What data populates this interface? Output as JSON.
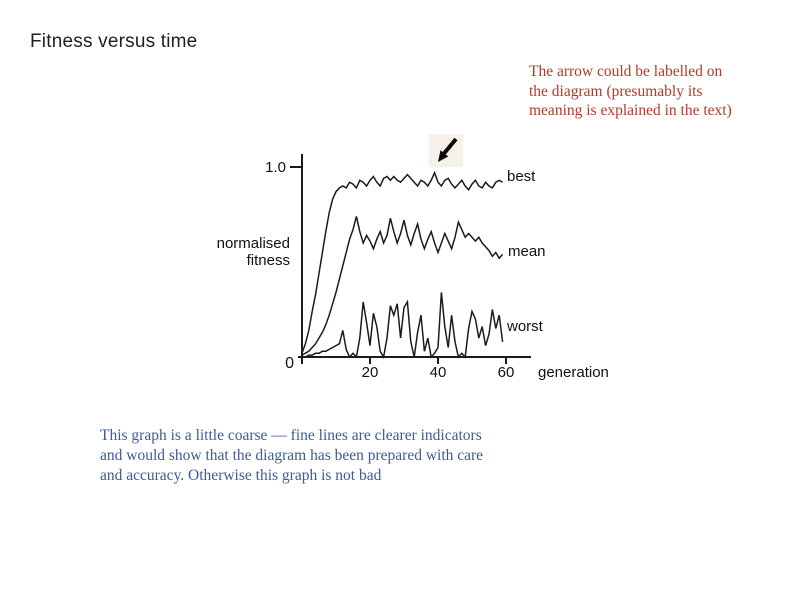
{
  "slide": {
    "title": "Fitness versus time",
    "background_color": "#ffffff"
  },
  "annotations": {
    "red_note": {
      "color": "#b23a28",
      "lines": [
        "The arrow could be labelled on",
        "the diagram (presumably its",
        "meaning is explained in the text)"
      ]
    },
    "blue_note": {
      "color": "#3e5b94",
      "lines": [
        "This graph is a little coarse — fine lines are clearer indicators",
        "and would show that the diagram has been prepared with care",
        "and accuracy. Otherwise this graph is not bad"
      ]
    }
  },
  "chart_data": {
    "type": "line",
    "title": "Fitness versus time",
    "xlabel": "generation",
    "ylabel": "normalised fitness",
    "ylabel_lines": [
      "normalised",
      "fitness"
    ],
    "origin_label": "0",
    "y_tick_label": "1.0",
    "x_tick_labels": [
      "20",
      "40",
      "60"
    ],
    "x_tick_values": [
      20,
      40,
      60
    ],
    "xlim": [
      0,
      67
    ],
    "ylim": [
      0,
      1.07
    ],
    "grid": false,
    "line_color": "#1b1b1b",
    "x_step": 1,
    "series": [
      {
        "name": "best",
        "values": [
          0.02,
          0.07,
          0.14,
          0.24,
          0.33,
          0.44,
          0.55,
          0.66,
          0.76,
          0.83,
          0.87,
          0.89,
          0.9,
          0.89,
          0.92,
          0.91,
          0.89,
          0.93,
          0.92,
          0.9,
          0.93,
          0.95,
          0.92,
          0.9,
          0.94,
          0.95,
          0.93,
          0.95,
          0.93,
          0.92,
          0.94,
          0.96,
          0.94,
          0.92,
          0.9,
          0.93,
          0.92,
          0.9,
          0.93,
          0.97,
          0.92,
          0.9,
          0.93,
          0.94,
          0.91,
          0.89,
          0.91,
          0.93,
          0.9,
          0.88,
          0.91,
          0.93,
          0.9,
          0.89,
          0.92,
          0.9,
          0.89,
          0.92,
          0.93,
          0.92
        ]
      },
      {
        "name": "mean",
        "values": [
          0.01,
          0.02,
          0.03,
          0.05,
          0.07,
          0.1,
          0.13,
          0.17,
          0.22,
          0.28,
          0.34,
          0.41,
          0.48,
          0.55,
          0.62,
          0.67,
          0.74,
          0.66,
          0.6,
          0.64,
          0.61,
          0.57,
          0.62,
          0.66,
          0.6,
          0.64,
          0.73,
          0.66,
          0.6,
          0.65,
          0.72,
          0.64,
          0.59,
          0.65,
          0.7,
          0.62,
          0.57,
          0.62,
          0.66,
          0.6,
          0.55,
          0.6,
          0.65,
          0.61,
          0.57,
          0.63,
          0.71,
          0.67,
          0.63,
          0.65,
          0.63,
          0.61,
          0.63,
          0.6,
          0.58,
          0.56,
          0.53,
          0.55,
          0.52,
          0.54
        ]
      },
      {
        "name": "worst",
        "values": [
          0.0,
          0.0,
          0.01,
          0.01,
          0.02,
          0.02,
          0.03,
          0.03,
          0.04,
          0.05,
          0.06,
          0.07,
          0.14,
          0.04,
          0.0,
          0.02,
          0.0,
          0.1,
          0.29,
          0.18,
          0.06,
          0.23,
          0.16,
          0.03,
          0.0,
          0.1,
          0.27,
          0.22,
          0.28,
          0.1,
          0.26,
          0.29,
          0.08,
          0.0,
          0.13,
          0.22,
          0.03,
          0.1,
          0.0,
          0.02,
          0.05,
          0.34,
          0.16,
          0.05,
          0.22,
          0.08,
          0.0,
          0.02,
          0.0,
          0.15,
          0.24,
          0.2,
          0.1,
          0.16,
          0.06,
          0.12,
          0.25,
          0.15,
          0.22,
          0.08
        ]
      }
    ],
    "arrow_annotation": {
      "direction": "pointing down-left",
      "target": "peak of best curve near generation 40",
      "background_color": "#f7f2e9"
    }
  }
}
